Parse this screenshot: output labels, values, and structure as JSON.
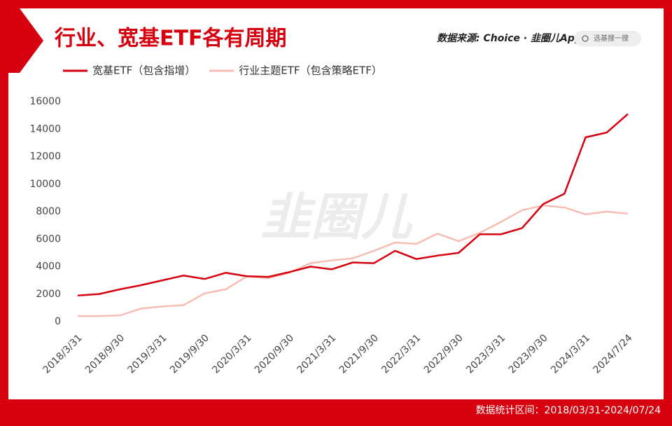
{
  "header": {
    "source": "数据来源: Choice · 韭圈儿App",
    "search": "选基搜一搜"
  },
  "watermark": "韭圈儿",
  "footer": "数据统计区间：2018/03/31-2024/07/24",
  "chart_data": {
    "type": "line",
    "title": "行业、宽基ETF各有周期",
    "categories": [
      "2018/3/31",
      null,
      "2018/9/30",
      null,
      "2019/3/31",
      null,
      "2019/9/30",
      null,
      "2020/3/31",
      null,
      "2020/9/30",
      null,
      "2021/3/31",
      null,
      "2021/9/30",
      null,
      "2022/3/31",
      null,
      "2022/9/30",
      null,
      "2023/3/31",
      null,
      "2023/9/30",
      null,
      "2024/3/31",
      null,
      "2024/7/24"
    ],
    "series": [
      {
        "name": "宽基ETF（包含指增）",
        "color": "#d7000f",
        "width": 2.5,
        "values": [
          1900,
          2000,
          2350,
          2650,
          3000,
          3350,
          3100,
          3550,
          3300,
          3250,
          3600,
          4000,
          3800,
          4300,
          4250,
          5150,
          4550,
          4800,
          5000,
          6350,
          6350,
          6800,
          8550,
          9300,
          13400,
          13750,
          15100
        ]
      },
      {
        "name": "行业主题ETF（包含策略ETF）",
        "color": "#f7bcb3",
        "width": 2.5,
        "values": [
          400,
          400,
          450,
          950,
          1100,
          1200,
          2050,
          2350,
          3300,
          3150,
          3550,
          4250,
          4450,
          4600,
          5150,
          5750,
          5650,
          6400,
          5850,
          6450,
          7250,
          8100,
          8450,
          8300,
          7800,
          8000,
          7850
        ]
      }
    ],
    "ylim": [
      0,
      16000
    ],
    "yticks": [
      0,
      2000,
      4000,
      6000,
      8000,
      10000,
      12000,
      14000,
      16000
    ],
    "grid": false
  }
}
